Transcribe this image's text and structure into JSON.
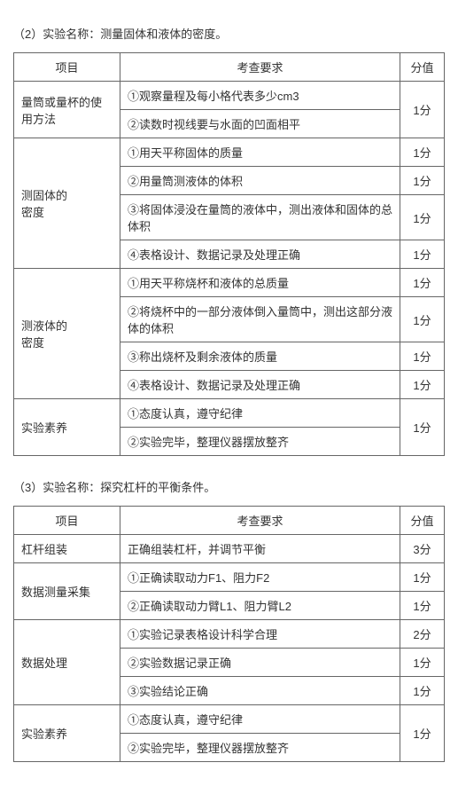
{
  "section2": {
    "title": "（2）实验名称：测量固体和液体的密度。",
    "headers": {
      "c1": "项目",
      "c2": "考查要求",
      "c3": "分值"
    },
    "groups": [
      {
        "name": "量筒或量杯的使用方法",
        "rows": [
          {
            "req": "①观察量程及每小格代表多少cm3"
          },
          {
            "req": "②读数时视线要与水面的凹面相平"
          }
        ],
        "score": "1分"
      },
      {
        "name": "测固体的\n密度",
        "rows": [
          {
            "req": "①用天平称固体的质量",
            "score": "1分"
          },
          {
            "req": "②用量筒测液体的体积",
            "score": "1分"
          },
          {
            "req": "③将固体浸没在量筒的液体中，测出液体和固体的总体积",
            "score": "1分"
          },
          {
            "req": "④表格设计、数据记录及处理正确",
            "score": "1分"
          }
        ]
      },
      {
        "name": "测液体的\n密度",
        "rows": [
          {
            "req": "①用天平称烧杯和液体的总质量",
            "score": "1分"
          },
          {
            "req": "②将烧杯中的一部分液体倒入量筒中，测出这部分液体的体积",
            "score": "1分"
          },
          {
            "req": "③称出烧杯及剩余液体的质量",
            "score": "1分"
          },
          {
            "req": "④表格设计、数据记录及处理正确",
            "score": "1分"
          }
        ]
      },
      {
        "name": "实验素养",
        "rows": [
          {
            "req": "①态度认真，遵守纪律"
          },
          {
            "req": "②实验完毕，整理仪器摆放整齐"
          }
        ],
        "score": "1分"
      }
    ]
  },
  "section3": {
    "title": "（3）实验名称：探究杠杆的平衡条件。",
    "headers": {
      "c1": "项目",
      "c2": "考查要求",
      "c3": "分值"
    },
    "groups": [
      {
        "name": "杠杆组装",
        "rows": [
          {
            "req": "正确组装杠杆，并调节平衡",
            "score": "3分"
          }
        ]
      },
      {
        "name": "数据测量采集",
        "rows": [
          {
            "req": "①正确读取动力F1、阻力F2",
            "score": "1分"
          },
          {
            "req": "②正确读取动力臂L1、阻力臂L2",
            "score": "1分"
          }
        ]
      },
      {
        "name": "数据处理",
        "rows": [
          {
            "req": "①实验记录表格设计科学合理",
            "score": "2分"
          },
          {
            "req": "②实验数据记录正确",
            "score": "1分"
          },
          {
            "req": "③实验结论正确",
            "score": "1分"
          }
        ]
      },
      {
        "name": "实验素养",
        "rows": [
          {
            "req": "①态度认真，遵守纪律"
          },
          {
            "req": "②实验完毕，整理仪器摆放整齐"
          }
        ],
        "score": "1分"
      }
    ]
  }
}
